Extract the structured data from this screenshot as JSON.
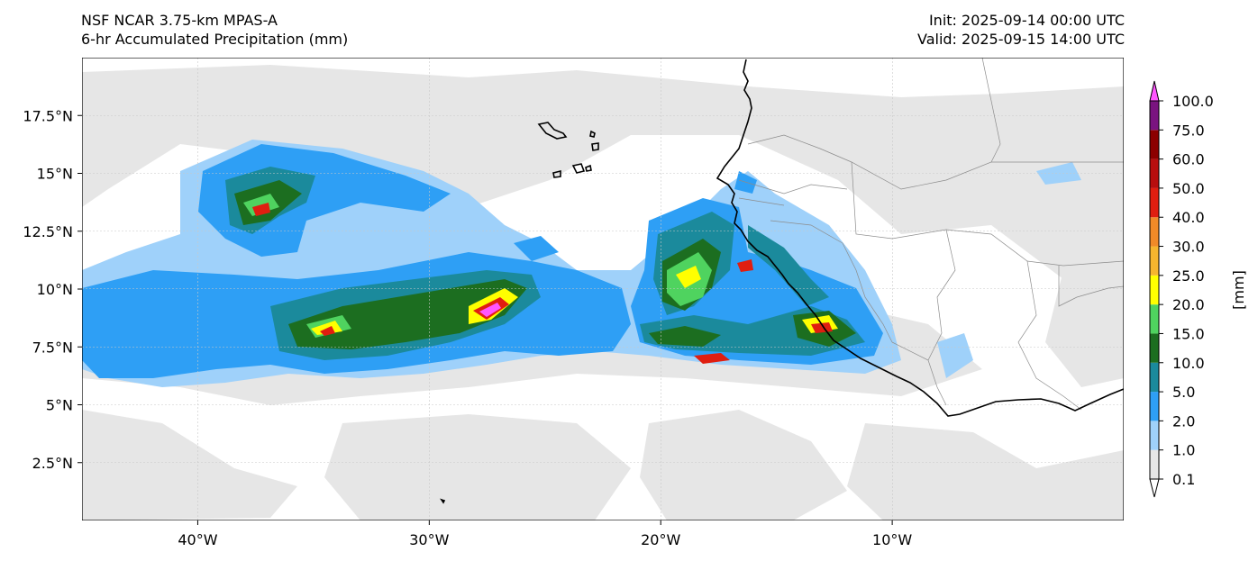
{
  "header": {
    "model": "NSF NCAR 3.75-km MPAS-A",
    "field": "6-hr Accumulated Precipitation (mm)",
    "init": "Init: 2025-09-14 00:00 UTC",
    "valid": "Valid: 2025-09-15 14:00 UTC"
  },
  "map": {
    "lon_range": [
      -45,
      0
    ],
    "lat_range": [
      0,
      20
    ],
    "lon_ticks": [
      {
        "value": -40,
        "label": "40°W"
      },
      {
        "value": -30,
        "label": "30°W"
      },
      {
        "value": -20,
        "label": "20°W"
      },
      {
        "value": -10,
        "label": "10°W"
      }
    ],
    "lat_ticks": [
      {
        "value": 2.5,
        "label": "2.5°N"
      },
      {
        "value": 5,
        "label": "5°N"
      },
      {
        "value": 7.5,
        "label": "7.5°N"
      },
      {
        "value": 10,
        "label": "10°N"
      },
      {
        "value": 12.5,
        "label": "12.5°N"
      },
      {
        "value": 15,
        "label": "15°N"
      },
      {
        "value": 17.5,
        "label": "17.5°N"
      }
    ],
    "gridlines": true
  },
  "colorbar": {
    "unit_label": "[mm]",
    "levels": [
      "0.1",
      "1.0",
      "2.0",
      "5.0",
      "10.0",
      "15.0",
      "20.0",
      "25.0",
      "30.0",
      "40.0",
      "50.0",
      "60.0",
      "75.0",
      "100.0"
    ],
    "colors": [
      "#e6e6e6",
      "#9fd1fa",
      "#2e9ff5",
      "#1b8a9c",
      "#1c6e20",
      "#4fd35f",
      "#ffff00",
      "#f5b52e",
      "#f08a28",
      "#e01e10",
      "#b80e0e",
      "#8c0000",
      "#7a1480",
      "#ff55ff"
    ],
    "extend": "both"
  }
}
